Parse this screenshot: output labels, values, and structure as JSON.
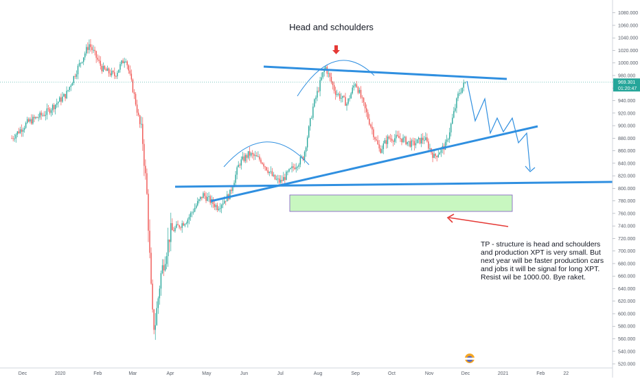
{
  "chart_data": {
    "type": "candlestick",
    "title": "Head and schoulders",
    "ylim": [
      520,
      1090
    ],
    "y_ticks": [
      520,
      540,
      560,
      580,
      600,
      620,
      640,
      660,
      680,
      700,
      720,
      740,
      760,
      780,
      800,
      820,
      840,
      860,
      880,
      900,
      920,
      940,
      960,
      980,
      1000,
      1020,
      1040,
      1060,
      1080
    ],
    "y_tick_labels": [
      "520.000",
      "540.000",
      "560.000",
      "580.000",
      "600.000",
      "620.000",
      "640.000",
      "660.000",
      "680.000",
      "700.000",
      "720.000",
      "740.000",
      "760.000",
      "780.000",
      "800.000",
      "820.000",
      "840.000",
      "860.000",
      "880.000",
      "900.000",
      "920.000",
      "940.000",
      "960.000",
      "980.000",
      "1000.000",
      "1020.000",
      "1040.000",
      "1060.000",
      "1080.000"
    ],
    "x_tick_labels": [
      "Dec",
      "2020",
      "Feb",
      "Mar",
      "Apr",
      "May",
      "Jun",
      "Jul",
      "Aug",
      "Sep",
      "Oct",
      "Nov",
      "Dec",
      "2021",
      "Feb",
      "22"
    ],
    "last_price": "969.301",
    "countdown": "01:20:47",
    "price_path": [
      [
        "2019-11-22",
        880
      ],
      [
        "2019-12-05",
        905
      ],
      [
        "2019-12-20",
        920
      ],
      [
        "2020-01-06",
        950
      ],
      [
        "2020-01-15",
        990
      ],
      [
        "2020-01-25",
        1030
      ],
      [
        "2020-02-05",
        990
      ],
      [
        "2020-02-15",
        980
      ],
      [
        "2020-02-24",
        1010
      ],
      [
        "2020-03-02",
        950
      ],
      [
        "2020-03-09",
        880
      ],
      [
        "2020-03-13",
        780
      ],
      [
        "2020-03-17",
        600
      ],
      [
        "2020-03-19",
        575
      ],
      [
        "2020-03-24",
        660
      ],
      [
        "2020-04-01",
        730
      ],
      [
        "2020-04-15",
        750
      ],
      [
        "2020-04-28",
        790
      ],
      [
        "2020-05-10",
        770
      ],
      [
        "2020-05-20",
        790
      ],
      [
        "2020-05-28",
        840
      ],
      [
        "2020-06-05",
        855
      ],
      [
        "2020-06-15",
        845
      ],
      [
        "2020-06-26",
        815
      ],
      [
        "2020-07-01",
        810
      ],
      [
        "2020-07-10",
        830
      ],
      [
        "2020-07-20",
        850
      ],
      [
        "2020-07-28",
        930
      ],
      [
        "2020-08-07",
        995
      ],
      [
        "2020-08-15",
        955
      ],
      [
        "2020-08-25",
        935
      ],
      [
        "2020-09-01",
        970
      ],
      [
        "2020-09-10",
        920
      ],
      [
        "2020-09-21",
        860
      ],
      [
        "2020-09-28",
        880
      ],
      [
        "2020-10-08",
        880
      ],
      [
        "2020-10-18",
        870
      ],
      [
        "2020-10-28",
        880
      ],
      [
        "2020-11-05",
        850
      ],
      [
        "2020-11-15",
        870
      ],
      [
        "2020-11-25",
        950
      ],
      [
        "2020-12-01",
        970
      ]
    ],
    "annotations": [
      "Head and schoulders",
      "TP - structure is head and schoulders",
      "and production XPT is very small. But",
      "next year will be faster production cars",
      "and jobs it will be signal for long XPT.",
      "Resist wil be 1000.00. Bye raket."
    ]
  },
  "colors": {
    "up": "#26a69a",
    "down": "#ef5350",
    "trendline": "#2f8fe0",
    "arc": "#2f8fe0",
    "arrow": "#e53935",
    "zone_fill": "#c8f7c0",
    "zone_border": "#7e57c2",
    "price_tag": "#26a69a",
    "grid": "#eef0f3"
  }
}
